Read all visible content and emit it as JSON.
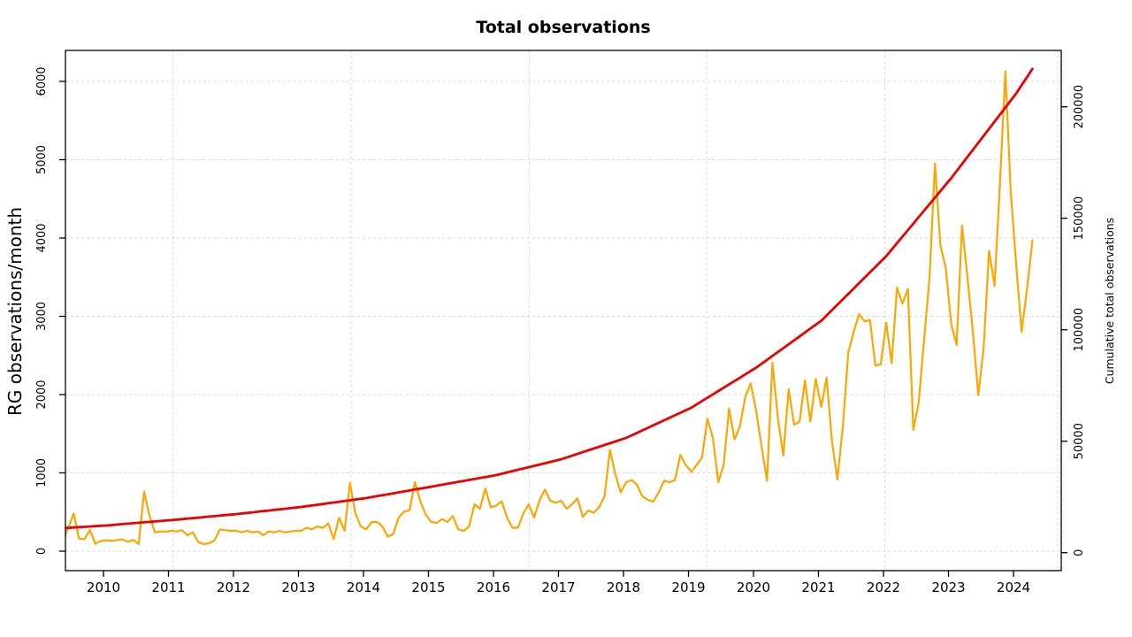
{
  "chart_data": {
    "type": "line",
    "title": "Total observations",
    "left_axis": {
      "label": "RG observations/month",
      "ticks": [
        0,
        1000,
        2000,
        3000,
        4000,
        5000,
        6000
      ],
      "range": [
        0,
        6400
      ]
    },
    "right_axis": {
      "label": "Cumulative total observations",
      "ticks": [
        0,
        50000,
        100000,
        150000,
        200000
      ],
      "range": [
        0,
        225000
      ]
    },
    "x_axis": {
      "tick_years": [
        2010,
        2011,
        2012,
        2013,
        2014,
        2015,
        2016,
        2017,
        2018,
        2019,
        2020,
        2021,
        2022,
        2023,
        2024
      ],
      "start_month": "2009-05",
      "end_month": "2024-04"
    },
    "grid": {
      "vertical_years": [
        2011.07,
        2013.81,
        2016.55,
        2019.28,
        2022.02,
        2024.68
      ],
      "color": "#d9d9d9",
      "dash": "3 3",
      "horizontal_on_left_ticks": true
    },
    "series": [
      {
        "name": "RG observations/month",
        "axis": "left",
        "color": "#FFA500",
        "width": 2.2,
        "values": [
          130,
          300,
          480,
          160,
          155,
          270,
          95,
          130,
          140,
          135,
          140,
          150,
          120,
          145,
          90,
          760,
          450,
          240,
          252,
          250,
          260,
          252,
          268,
          203,
          241,
          116,
          90,
          101,
          139,
          279,
          268,
          260,
          260,
          241,
          260,
          241,
          252,
          203,
          252,
          241,
          260,
          241,
          250,
          260,
          260,
          297,
          279,
          316,
          297,
          354,
          155,
          430,
          260,
          870,
          486,
          316,
          278,
          373,
          373,
          316,
          184,
          222,
          429,
          505,
          523,
          881,
          636,
          467,
          373,
          359,
          410,
          373,
          449,
          278,
          260,
          316,
          599,
          542,
          800,
          562,
          580,
          640,
          430,
          300,
          300,
          480,
          599,
          429,
          650,
          787,
          644,
          618,
          644,
          542,
          599,
          675,
          441,
          520,
          490,
          560,
          700,
          1296,
          983,
          749,
          881,
          908,
          847,
          700,
          655,
          634,
          750,
          900,
          880,
          908,
          1231,
          1100,
          1013,
          1100,
          1194,
          1691,
          1446,
          881,
          1100,
          1823,
          1427,
          1596,
          1974,
          2144,
          1785,
          1333,
          900,
          2407,
          1700,
          1220,
          2068,
          1616,
          1653,
          2181,
          1653,
          2200,
          1842,
          2218,
          1400,
          918,
          1600,
          2539,
          2800,
          3028,
          2934,
          2953,
          2370,
          2388,
          2916,
          2400,
          3367,
          3160,
          3350,
          1548,
          1900,
          2700,
          3500,
          4950,
          3914,
          3616,
          2900,
          2633,
          4158,
          3500,
          2802,
          1992,
          2600,
          3838,
          3386,
          4700,
          6128,
          4592,
          3650,
          2803,
          3348,
          3970
        ]
      },
      {
        "name": "Cumulative total observations",
        "axis": "right",
        "color": "#EE0000",
        "width": 2.8,
        "values": [
          11000,
          11150,
          11300,
          11450,
          11600,
          11750,
          11900,
          12050,
          12200,
          12400,
          12600,
          12800,
          13000,
          13200,
          13400,
          13600,
          13800,
          14000,
          14200,
          14400,
          14600,
          14825,
          15050,
          15275,
          15500,
          15725,
          15950,
          16175,
          16400,
          16625,
          16850,
          17075,
          17300,
          17567,
          17833,
          18100,
          18367,
          18633,
          18900,
          19167,
          19433,
          19700,
          19967,
          20233,
          20500,
          20833,
          21167,
          21500,
          21833,
          22167,
          22500,
          22833,
          23167,
          23500,
          23833,
          24167,
          24500,
          24925,
          25350,
          25775,
          26200,
          26625,
          27050,
          27475,
          27900,
          28325,
          28750,
          29175,
          29600,
          30033,
          30467,
          30900,
          31333,
          31767,
          32200,
          32633,
          33067,
          33500,
          33933,
          34367,
          34800,
          35392,
          35983,
          36575,
          37167,
          37758,
          38350,
          38942,
          39533,
          40125,
          40717,
          41308,
          41900,
          42700,
          43500,
          44300,
          45100,
          45900,
          46700,
          47500,
          48300,
          49100,
          49900,
          50700,
          51500,
          52625,
          53750,
          54875,
          56000,
          57125,
          58250,
          59375,
          60500,
          61625,
          62750,
          63875,
          65000,
          66500,
          68000,
          69500,
          71000,
          72500,
          74000,
          75500,
          77000,
          78500,
          80000,
          81500,
          83000,
          84750,
          86500,
          88250,
          90000,
          91750,
          93500,
          95250,
          97000,
          98750,
          100500,
          102250,
          104000,
          106417,
          108833,
          111250,
          113667,
          116083,
          118500,
          120917,
          123333,
          125750,
          128167,
          130583,
          133000,
          135917,
          138833,
          141750,
          144667,
          147583,
          150500,
          153417,
          156333,
          159250,
          162167,
          165083,
          168000,
          171167,
          174333,
          177500,
          180667,
          183833,
          187000,
          190167,
          193333,
          196500,
          199667,
          202833,
          206000,
          209667,
          213333,
          217000
        ]
      }
    ]
  }
}
